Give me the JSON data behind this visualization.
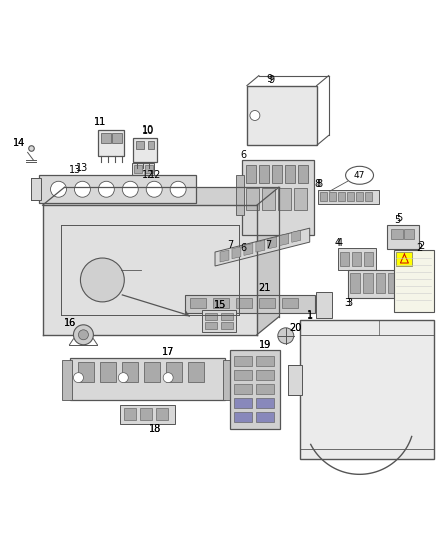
{
  "background_color": "#ffffff",
  "figsize": [
    4.38,
    5.33
  ],
  "dpi": 100,
  "lc": "#555555",
  "pf": "#d8d8d8",
  "gray1": "#bbbbbb",
  "gray2": "#aaaaaa",
  "gray3": "#cccccc",
  "gray4": "#e8e8e8"
}
